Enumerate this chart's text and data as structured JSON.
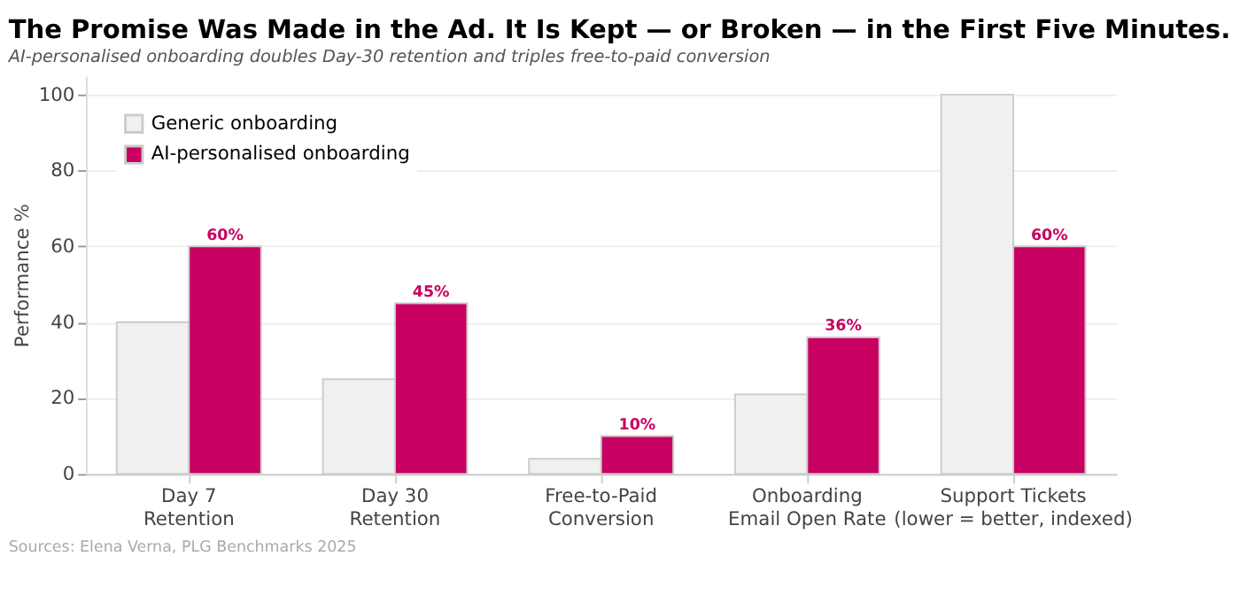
{
  "chart_data": {
    "type": "bar",
    "title": "The Promise Was Made in the Ad. It Is Kept — or Broken — in the First Five Minutes.",
    "subtitle": "AI-personalised onboarding doubles Day-30 retention and triples free-to-paid conversion",
    "ylabel": "Performance %",
    "categories": [
      "Day 7\nRetention",
      "Day 30\nRetention",
      "Free-to-Paid\nConversion",
      "Onboarding\nEmail Open Rate",
      "Support Tickets\n(lower = better, indexed)"
    ],
    "series": [
      {
        "name": "Generic onboarding",
        "color": "#f0f0f0",
        "values": [
          40,
          25,
          4,
          21,
          100
        ]
      },
      {
        "name": "AI-personalised onboarding",
        "color": "#c70062",
        "values": [
          60,
          45,
          10,
          36,
          60
        ],
        "value_labels": [
          "60%",
          "45%",
          "10%",
          "36%",
          "60%"
        ]
      }
    ],
    "ylim": [
      0,
      105
    ],
    "yticks": [
      0,
      20,
      40,
      60,
      80,
      100
    ],
    "grid": "y",
    "legend": "top left",
    "annotations": [
      "Sources: Elena Verna, PLG Benchmarks 2025"
    ]
  }
}
